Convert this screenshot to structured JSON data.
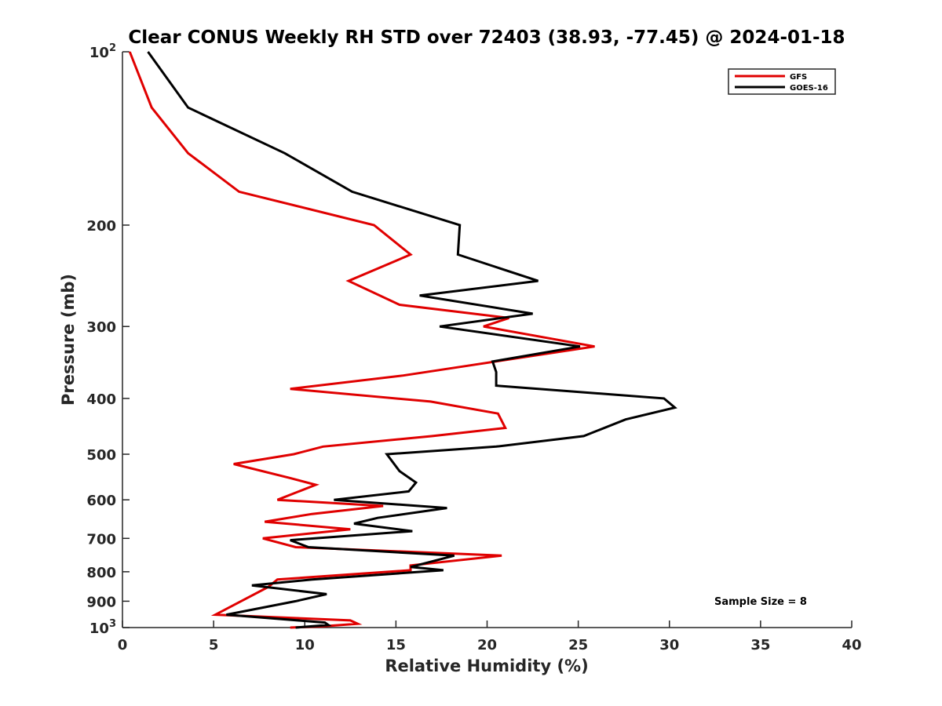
{
  "chart_data": {
    "type": "line",
    "title": "Clear CONUS Weekly RH STD over 72403 (38.93, -77.45) @ 2024-01-18",
    "xlabel": "Relative Humidity (%)",
    "ylabel": "Pressure (mb)",
    "xlim": [
      0,
      40
    ],
    "ylim": [
      100,
      1000
    ],
    "y_scale": "log",
    "y_reversed": true,
    "grid": false,
    "x_ticks": [
      "0",
      "5",
      "10",
      "15",
      "20",
      "25",
      "30",
      "35",
      "40"
    ],
    "y_ticks": [
      {
        "value": 100,
        "label": "10",
        "sup": "2"
      },
      {
        "value": 200,
        "label": "200"
      },
      {
        "value": 300,
        "label": "300"
      },
      {
        "value": 400,
        "label": "400"
      },
      {
        "value": 500,
        "label": "500"
      },
      {
        "value": 600,
        "label": "600"
      },
      {
        "value": 700,
        "label": "700"
      },
      {
        "value": 800,
        "label": "800"
      },
      {
        "value": 900,
        "label": "900"
      },
      {
        "value": 1000,
        "label": "10",
        "sup": "3"
      }
    ],
    "legend_position": "top-right",
    "annotation": "Sample Size = 8",
    "series": [
      {
        "name": "GFS",
        "color": "#e00000",
        "points": [
          [
            0.4,
            100
          ],
          [
            1.6,
            125
          ],
          [
            3.6,
            150
          ],
          [
            6.4,
            175
          ],
          [
            13.8,
            200
          ],
          [
            15.8,
            225
          ],
          [
            12.4,
            250
          ],
          [
            15.2,
            275
          ],
          [
            21.2,
            290
          ],
          [
            19.8,
            300
          ],
          [
            25.9,
            325
          ],
          [
            19.2,
            350
          ],
          [
            15.4,
            365
          ],
          [
            9.2,
            385
          ],
          [
            16.9,
            405
          ],
          [
            20.6,
            425
          ],
          [
            21.0,
            450
          ],
          [
            17.0,
            465
          ],
          [
            11.0,
            485
          ],
          [
            9.4,
            500
          ],
          [
            6.1,
            520
          ],
          [
            9.2,
            550
          ],
          [
            10.6,
            565
          ],
          [
            8.5,
            600
          ],
          [
            14.3,
            615
          ],
          [
            10.4,
            635
          ],
          [
            7.8,
            655
          ],
          [
            12.5,
            675
          ],
          [
            7.7,
            700
          ],
          [
            9.5,
            725
          ],
          [
            20.8,
            750
          ],
          [
            15.8,
            780
          ],
          [
            15.8,
            795
          ],
          [
            8.5,
            825
          ],
          [
            8.0,
            850
          ],
          [
            5.1,
            950
          ],
          [
            12.5,
            972
          ],
          [
            12.9,
            985
          ],
          [
            11.0,
            995
          ],
          [
            9.2,
            1000
          ]
        ]
      },
      {
        "name": "GOES-16",
        "color": "#000000",
        "points": [
          [
            1.4,
            100
          ],
          [
            3.6,
            125
          ],
          [
            8.9,
            150
          ],
          [
            12.6,
            175
          ],
          [
            18.5,
            200
          ],
          [
            18.4,
            225
          ],
          [
            22.8,
            250
          ],
          [
            16.3,
            265
          ],
          [
            22.5,
            285
          ],
          [
            17.4,
            300
          ],
          [
            25.1,
            325
          ],
          [
            20.3,
            345
          ],
          [
            20.5,
            360
          ],
          [
            20.5,
            380
          ],
          [
            29.7,
            400
          ],
          [
            30.3,
            415
          ],
          [
            27.6,
            435
          ],
          [
            25.3,
            465
          ],
          [
            20.5,
            485
          ],
          [
            14.5,
            500
          ],
          [
            15.2,
            535
          ],
          [
            16.1,
            560
          ],
          [
            15.7,
            580
          ],
          [
            11.6,
            600
          ],
          [
            17.8,
            620
          ],
          [
            14.0,
            645
          ],
          [
            12.7,
            660
          ],
          [
            15.9,
            680
          ],
          [
            9.2,
            705
          ],
          [
            10.2,
            725
          ],
          [
            18.2,
            750
          ],
          [
            15.8,
            785
          ],
          [
            17.6,
            795
          ],
          [
            10.4,
            825
          ],
          [
            7.1,
            845
          ],
          [
            11.2,
            875
          ],
          [
            9.5,
            900
          ],
          [
            5.7,
            950
          ],
          [
            11.1,
            980
          ],
          [
            11.3,
            990
          ],
          [
            9.5,
            1000
          ]
        ]
      }
    ]
  }
}
